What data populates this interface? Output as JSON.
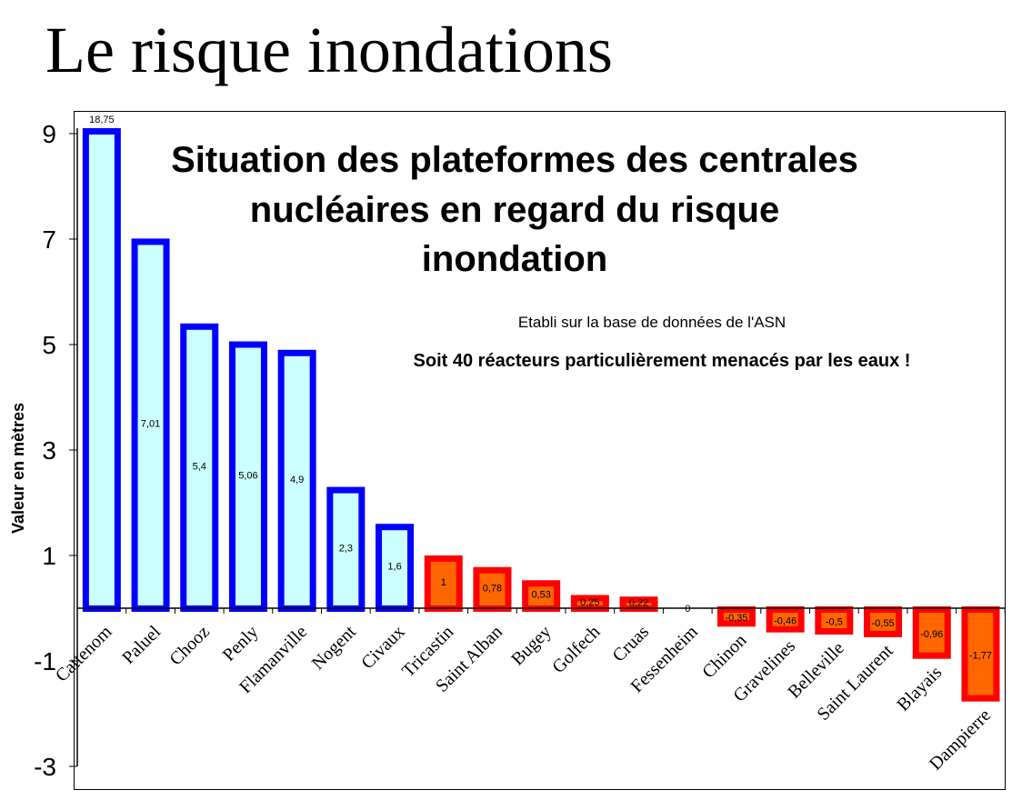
{
  "slide_title": "Le risque inondations",
  "chart_data": {
    "type": "bar",
    "title": "Situation des plateformes des centrales nucléaires en regard du risque inondation",
    "title_lines": [
      "Situation des plateformes des centrales",
      "nucléaires en regard du risque",
      "inondation"
    ],
    "subtitle": "Etabli sur la base de données de l'ASN",
    "annotation": "Soit 40 réacteurs particulièrement  menacés par les eaux !",
    "ylabel": "Valeur en mètres",
    "xlabel": "",
    "ylim": [
      -3,
      9
    ],
    "yticks": [
      "9",
      "7",
      "5",
      "3",
      "1",
      "-1",
      "-3"
    ],
    "ytick_values": [
      9,
      7,
      5,
      3,
      1,
      -1,
      -3
    ],
    "grid": false,
    "categories": [
      "Cattenom",
      "Paluel",
      "Chooz",
      "Penly",
      "Flamanville",
      "Nogent",
      "Civaux",
      "Tricastin",
      "Saint Alban",
      "Bugey",
      "Golfech",
      "Cruas",
      "Fessenheim",
      "Chinon",
      "Gravelines",
      "Belleville",
      "Saint Laurent",
      "Blayais",
      "Dampierre"
    ],
    "values": [
      18.75,
      7.01,
      5.4,
      5.06,
      4.9,
      2.3,
      1.6,
      1,
      0.78,
      0.53,
      0.25,
      0.22,
      0,
      -0.35,
      -0.46,
      -0.5,
      -0.55,
      -0.96,
      -1.77
    ],
    "data_labels": [
      "18,75",
      "7,01",
      "5,4",
      "5,06",
      "4,9",
      "2,3",
      "1,6",
      "1",
      "0,78",
      "0,53",
      "0,25",
      "0,22",
      "0",
      "-0,35",
      "-0,46",
      "-0,5",
      "-0,55",
      "-0,96",
      "-1,77"
    ],
    "colors": {
      "high_fill": "#ccffff",
      "high_stroke": "#0000ff",
      "low_fill": "#ff6600",
      "low_stroke": "#ff0000"
    }
  }
}
